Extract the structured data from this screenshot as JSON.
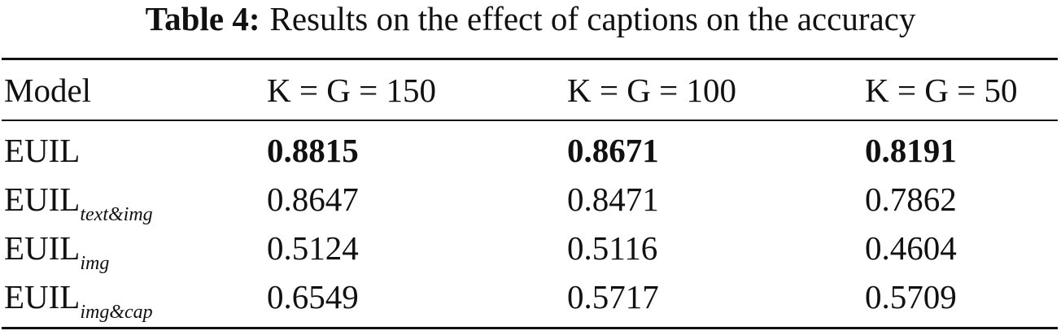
{
  "table": {
    "caption": {
      "label": "Table 4:",
      "text": "Results on the effect of captions on the accuracy"
    },
    "header": [
      "Model",
      "K = G = 150",
      "K = G = 100",
      "K = G = 50"
    ],
    "rows": [
      {
        "model": {
          "base": "EUIL"
        },
        "values": [
          0.8815,
          0.8671,
          0.8191
        ]
      },
      {
        "model": {
          "base": "EUIL",
          "sub": "text&img"
        },
        "values": [
          0.8647,
          0.8471,
          0.7862
        ]
      },
      {
        "model": {
          "base": "EUIL",
          "sub": "img"
        },
        "values": [
          0.5124,
          0.5116,
          0.4604
        ]
      },
      {
        "model": {
          "base": "EUIL",
          "sub": "img&cap"
        },
        "values": [
          0.6549,
          0.5717,
          0.5709
        ]
      }
    ]
  }
}
